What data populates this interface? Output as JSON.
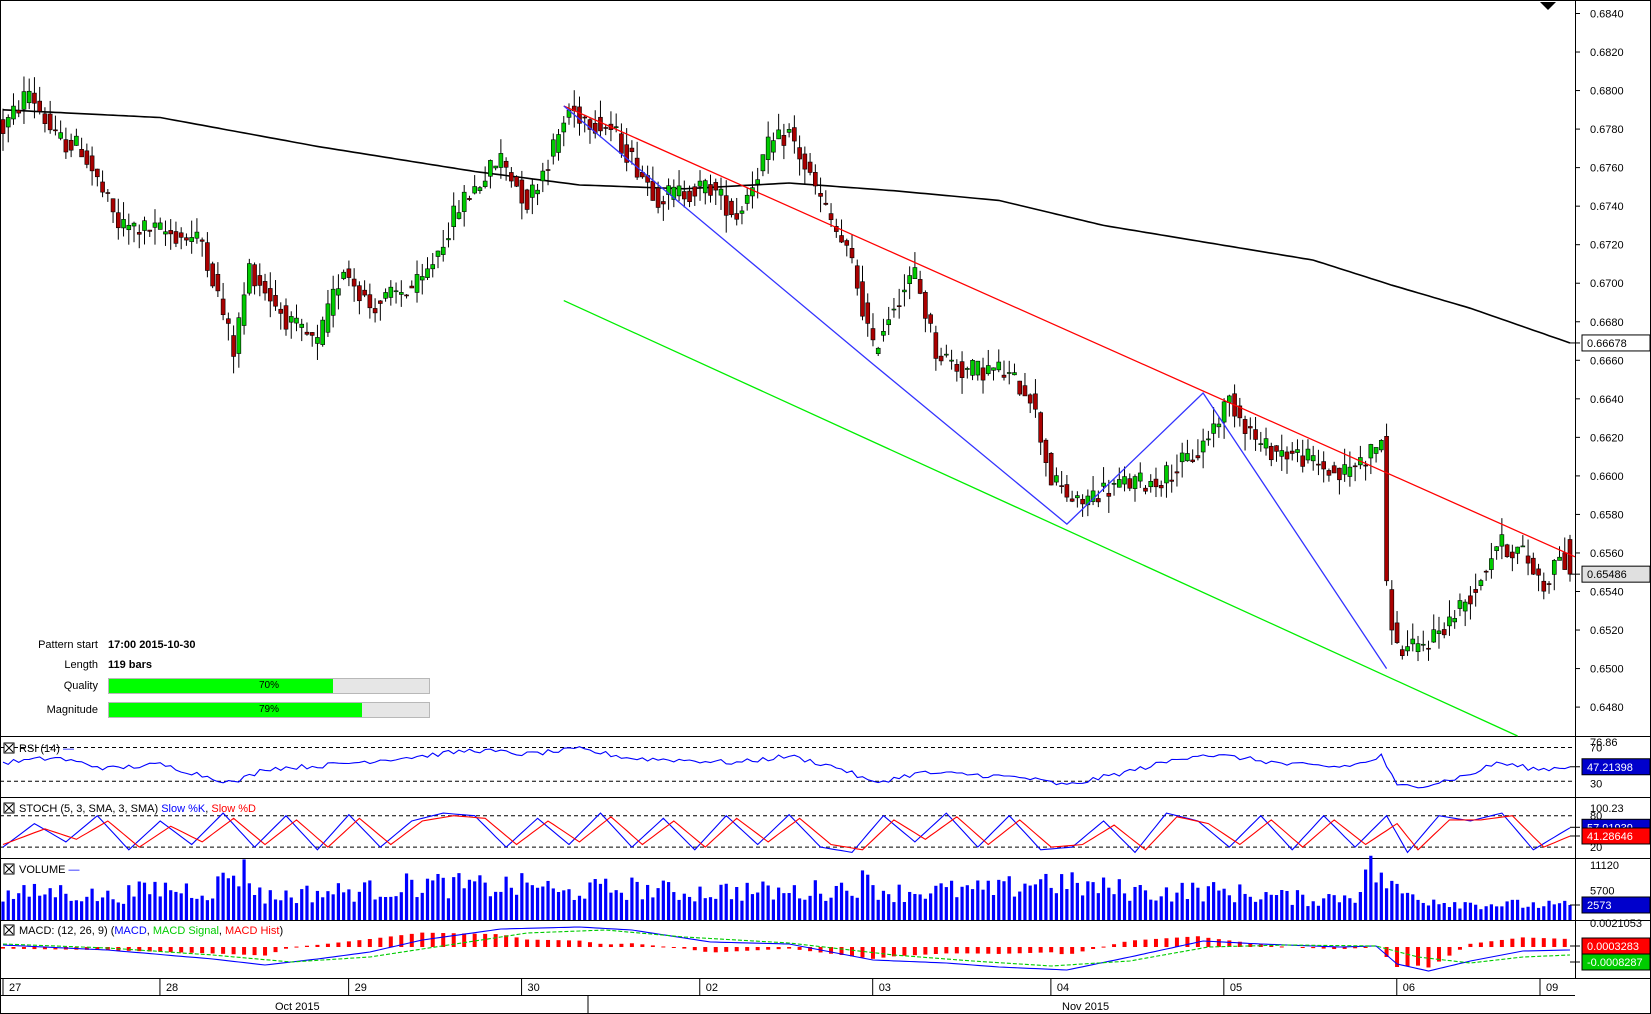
{
  "colors": {
    "up": "#00cc00",
    "down": "#aa0000",
    "ma": "#000000",
    "resistance": "#ff0000",
    "support": "#00ee00",
    "pattern": "#3333ff",
    "rsi": "#0000ff",
    "stoch_k": "#0000ff",
    "stoch_d": "#ff0000",
    "volume": "#0000ff",
    "macd_hist": "#ff0000",
    "macd_signal": "#00cc00"
  },
  "panel_icon": "box-x-icon",
  "corner_icon": "triangle-down-icon",
  "pattern_info": {
    "start_label": "Pattern start",
    "start_value": "17:00 2015-10-30",
    "length_label": "Length",
    "length_value": "119 bars",
    "quality_label": "Quality",
    "quality_value": "70%",
    "quality_fraction": 0.7,
    "magnitude_label": "Magnitude",
    "magnitude_value": "79%",
    "magnitude_fraction": 0.79
  },
  "chart_data": [
    {
      "type": "candlestick",
      "ylim": [
        0.6465,
        0.6847
      ],
      "yticks": [
        "0.6840",
        "0.6820",
        "0.6800",
        "0.6780",
        "0.6760",
        "0.6740",
        "0.6720",
        "0.6700",
        "0.6680",
        "0.6660",
        "0.6640",
        "0.6620",
        "0.6600",
        "0.6580",
        "0.6560",
        "0.6540",
        "0.6520",
        "0.6500",
        "0.6480"
      ],
      "x_day_labels": [
        "27",
        "28",
        "29",
        "30",
        "02",
        "03",
        "04",
        "05",
        "06",
        "09"
      ],
      "x_month_labels": [
        "Oct 2015",
        "Nov 2015"
      ],
      "last_price_label": "0.65486",
      "ma_label": "0.66678",
      "price_keypoints": [
        [
          0,
          0.678
        ],
        [
          5,
          0.68
        ],
        [
          10,
          0.6775
        ],
        [
          15,
          0.677
        ],
        [
          22,
          0.673
        ],
        [
          30,
          0.6727
        ],
        [
          38,
          0.6722
        ],
        [
          44,
          0.6665
        ],
        [
          47,
          0.6708
        ],
        [
          55,
          0.6678
        ],
        [
          60,
          0.6668
        ],
        [
          65,
          0.6709
        ],
        [
          70,
          0.6688
        ],
        [
          80,
          0.67
        ],
        [
          87,
          0.674
        ],
        [
          95,
          0.6765
        ],
        [
          100,
          0.6742
        ],
        [
          105,
          0.677
        ],
        [
          108,
          0.679
        ],
        [
          116,
          0.678
        ],
        [
          125,
          0.6745
        ],
        [
          135,
          0.675
        ],
        [
          140,
          0.6735
        ],
        [
          146,
          0.677
        ],
        [
          150,
          0.6778
        ],
        [
          156,
          0.6743
        ],
        [
          162,
          0.671
        ],
        [
          166,
          0.6665
        ],
        [
          170,
          0.669
        ],
        [
          174,
          0.6705
        ],
        [
          178,
          0.6665
        ],
        [
          183,
          0.6655
        ],
        [
          190,
          0.6655
        ],
        [
          196,
          0.6643
        ],
        [
          200,
          0.6598
        ],
        [
          205,
          0.6585
        ],
        [
          209,
          0.6592
        ],
        [
          214,
          0.6596
        ],
        [
          220,
          0.6597
        ],
        [
          228,
          0.6612
        ],
        [
          234,
          0.664
        ],
        [
          240,
          0.6615
        ],
        [
          248,
          0.661
        ],
        [
          255,
          0.66
        ],
        [
          261,
          0.6612
        ],
        [
          263,
          0.662
        ],
        [
          264,
          0.654
        ],
        [
          266,
          0.651
        ],
        [
          270,
          0.651
        ],
        [
          276,
          0.6525
        ],
        [
          281,
          0.6542
        ],
        [
          285,
          0.6565
        ],
        [
          290,
          0.656
        ],
        [
          294,
          0.6543
        ],
        [
          297,
          0.656
        ],
        [
          299,
          0.6549
        ]
      ],
      "ma_keypoints": [
        [
          0,
          0.679
        ],
        [
          30,
          0.6786
        ],
        [
          60,
          0.6771
        ],
        [
          90,
          0.6758
        ],
        [
          110,
          0.6751
        ],
        [
          130,
          0.6749
        ],
        [
          150,
          0.6752
        ],
        [
          170,
          0.6748
        ],
        [
          190,
          0.6743
        ],
        [
          210,
          0.673
        ],
        [
          230,
          0.6721
        ],
        [
          250,
          0.6712
        ],
        [
          265,
          0.6699
        ],
        [
          280,
          0.6687
        ],
        [
          299,
          0.6669
        ]
      ],
      "lines": [
        {
          "name": "resistance",
          "from": [
            107,
            0.6792
          ],
          "to": [
            299,
            0.6558
          ]
        },
        {
          "name": "support",
          "from": [
            107,
            0.6691
          ],
          "to": [
            289,
            0.6465
          ]
        },
        {
          "name": "pattern",
          "points": [
            [
              107,
              0.6792
            ],
            [
              166,
              0.6658
            ],
            [
              203,
              0.6575
            ],
            [
              229,
              0.6643
            ],
            [
              264,
              0.65
            ]
          ]
        }
      ]
    },
    {
      "type": "line",
      "name": "RSI",
      "title": "RSI (14)",
      "ylim": [
        15,
        80
      ],
      "levels_labels": [
        "70",
        "30"
      ],
      "top_label": "76.86",
      "value_label": "47.21398",
      "keypoints": [
        [
          0,
          52
        ],
        [
          10,
          58
        ],
        [
          20,
          45
        ],
        [
          30,
          50
        ],
        [
          40,
          34
        ],
        [
          44,
          28
        ],
        [
          50,
          45
        ],
        [
          60,
          48
        ],
        [
          70,
          54
        ],
        [
          80,
          60
        ],
        [
          90,
          67
        ],
        [
          100,
          62
        ],
        [
          110,
          68
        ],
        [
          120,
          57
        ],
        [
          130,
          55
        ],
        [
          140,
          52
        ],
        [
          150,
          60
        ],
        [
          160,
          45
        ],
        [
          166,
          28
        ],
        [
          175,
          40
        ],
        [
          185,
          38
        ],
        [
          195,
          34
        ],
        [
          203,
          25
        ],
        [
          215,
          42
        ],
        [
          228,
          62
        ],
        [
          236,
          58
        ],
        [
          245,
          50
        ],
        [
          255,
          47
        ],
        [
          260,
          52
        ],
        [
          263,
          60
        ],
        [
          266,
          24
        ],
        [
          272,
          26
        ],
        [
          280,
          38
        ],
        [
          285,
          52
        ],
        [
          293,
          44
        ],
        [
          299,
          47
        ]
      ]
    },
    {
      "type": "line",
      "name": "Stochastic",
      "title": "STOCH (5, 3, SMA, 3, SMA)",
      "series_names": [
        "Slow %K",
        "Slow %D"
      ],
      "ylim": [
        5,
        110
      ],
      "top_label": "100.23",
      "levels_labels": [
        "80",
        "20"
      ],
      "value_labels": [
        "57.91939",
        "41.28646"
      ],
      "k_keypoints": [
        [
          0,
          20
        ],
        [
          6,
          65
        ],
        [
          12,
          30
        ],
        [
          18,
          80
        ],
        [
          24,
          15
        ],
        [
          30,
          70
        ],
        [
          36,
          25
        ],
        [
          42,
          85
        ],
        [
          48,
          20
        ],
        [
          54,
          80
        ],
        [
          60,
          15
        ],
        [
          66,
          82
        ],
        [
          72,
          20
        ],
        [
          78,
          70
        ],
        [
          84,
          85
        ],
        [
          90,
          80
        ],
        [
          96,
          20
        ],
        [
          102,
          75
        ],
        [
          108,
          25
        ],
        [
          114,
          85
        ],
        [
          120,
          20
        ],
        [
          126,
          75
        ],
        [
          132,
          15
        ],
        [
          138,
          80
        ],
        [
          144,
          25
        ],
        [
          150,
          82
        ],
        [
          156,
          20
        ],
        [
          162,
          10
        ],
        [
          168,
          80
        ],
        [
          174,
          30
        ],
        [
          180,
          85
        ],
        [
          186,
          20
        ],
        [
          192,
          80
        ],
        [
          198,
          15
        ],
        [
          204,
          20
        ],
        [
          210,
          70
        ],
        [
          216,
          10
        ],
        [
          222,
          85
        ],
        [
          228,
          70
        ],
        [
          234,
          20
        ],
        [
          240,
          80
        ],
        [
          246,
          15
        ],
        [
          252,
          80
        ],
        [
          258,
          20
        ],
        [
          264,
          80
        ],
        [
          268,
          10
        ],
        [
          274,
          80
        ],
        [
          280,
          70
        ],
        [
          286,
          85
        ],
        [
          292,
          15
        ],
        [
          299,
          57
        ]
      ],
      "d_keypoints": [
        [
          0,
          25
        ],
        [
          8,
          55
        ],
        [
          14,
          35
        ],
        [
          20,
          70
        ],
        [
          26,
          20
        ],
        [
          32,
          60
        ],
        [
          38,
          30
        ],
        [
          44,
          75
        ],
        [
          50,
          25
        ],
        [
          56,
          72
        ],
        [
          62,
          20
        ],
        [
          68,
          75
        ],
        [
          74,
          25
        ],
        [
          80,
          70
        ],
        [
          86,
          80
        ],
        [
          92,
          75
        ],
        [
          98,
          25
        ],
        [
          104,
          70
        ],
        [
          110,
          30
        ],
        [
          116,
          78
        ],
        [
          122,
          25
        ],
        [
          128,
          70
        ],
        [
          134,
          20
        ],
        [
          140,
          75
        ],
        [
          146,
          30
        ],
        [
          152,
          75
        ],
        [
          158,
          25
        ],
        [
          164,
          15
        ],
        [
          170,
          72
        ],
        [
          176,
          35
        ],
        [
          182,
          78
        ],
        [
          188,
          25
        ],
        [
          194,
          72
        ],
        [
          200,
          20
        ],
        [
          206,
          25
        ],
        [
          212,
          62
        ],
        [
          218,
          15
        ],
        [
          224,
          78
        ],
        [
          230,
          65
        ],
        [
          236,
          25
        ],
        [
          242,
          72
        ],
        [
          248,
          20
        ],
        [
          254,
          72
        ],
        [
          260,
          25
        ],
        [
          266,
          65
        ],
        [
          270,
          15
        ],
        [
          276,
          72
        ],
        [
          282,
          72
        ],
        [
          288,
          80
        ],
        [
          294,
          20
        ],
        [
          299,
          41
        ]
      ]
    },
    {
      "type": "bar",
      "name": "Volume",
      "title": "VOLUME",
      "ylim": [
        0,
        12000
      ],
      "ticks": [
        "11120",
        "5700"
      ],
      "value_label": "2573",
      "keypoints": [
        [
          0,
          4800
        ],
        [
          10,
          5800
        ],
        [
          20,
          4500
        ],
        [
          30,
          6500
        ],
        [
          40,
          6000
        ],
        [
          44,
          10500
        ],
        [
          46,
          9800
        ],
        [
          50,
          4500
        ],
        [
          60,
          5500
        ],
        [
          70,
          6000
        ],
        [
          80,
          7500
        ],
        [
          90,
          6800
        ],
        [
          100,
          7000
        ],
        [
          102,
          7800
        ],
        [
          106,
          5000
        ],
        [
          110,
          6000
        ],
        [
          120,
          6500
        ],
        [
          130,
          5500
        ],
        [
          140,
          6000
        ],
        [
          150,
          5500
        ],
        [
          160,
          6500
        ],
        [
          164,
          7800
        ],
        [
          170,
          5500
        ],
        [
          180,
          6000
        ],
        [
          190,
          6000
        ],
        [
          198,
          8500
        ],
        [
          205,
          7000
        ],
        [
          210,
          6500
        ],
        [
          220,
          5500
        ],
        [
          228,
          6000
        ],
        [
          240,
          5000
        ],
        [
          250,
          4000
        ],
        [
          258,
          5000
        ],
        [
          260,
          10800
        ],
        [
          262,
          10000
        ],
        [
          266,
          5800
        ],
        [
          272,
          4000
        ],
        [
          280,
          3000
        ],
        [
          290,
          2800
        ],
        [
          299,
          2573
        ]
      ]
    },
    {
      "type": "line",
      "name": "MACD",
      "title": "MACD: (12, 26, 9)",
      "series_names": [
        "MACD",
        "MACD Signal",
        "MACD Hist"
      ],
      "ylim": [
        -0.0028,
        0.0024
      ],
      "top_label": "0.0021053",
      "value_labels": [
        "0.0003283",
        "-0.0008287"
      ],
      "macd_keypoints": [
        [
          0,
          0.0002
        ],
        [
          20,
          -0.0003
        ],
        [
          40,
          -0.0012
        ],
        [
          50,
          -0.0018
        ],
        [
          60,
          -0.0012
        ],
        [
          70,
          -0.0005
        ],
        [
          80,
          0.0007
        ],
        [
          95,
          0.0018
        ],
        [
          110,
          0.002
        ],
        [
          120,
          0.0017
        ],
        [
          135,
          0.0005
        ],
        [
          150,
          0.0003
        ],
        [
          166,
          -0.0013
        ],
        [
          180,
          -0.0016
        ],
        [
          190,
          -0.002
        ],
        [
          203,
          -0.0023
        ],
        [
          215,
          -0.001
        ],
        [
          229,
          0.0006
        ],
        [
          240,
          0.0003
        ],
        [
          255,
          0.0
        ],
        [
          262,
          0.0001
        ],
        [
          266,
          -0.0017
        ],
        [
          272,
          -0.0024
        ],
        [
          280,
          -0.0014
        ],
        [
          290,
          -0.0004
        ],
        [
          299,
          -0.0003
        ]
      ],
      "signal_keypoints": [
        [
          0,
          0.0003
        ],
        [
          20,
          -0.0001
        ],
        [
          40,
          -0.0008
        ],
        [
          55,
          -0.0015
        ],
        [
          70,
          -0.001
        ],
        [
          85,
          0.0002
        ],
        [
          100,
          0.0014
        ],
        [
          115,
          0.0017
        ],
        [
          130,
          0.001
        ],
        [
          150,
          0.0004
        ],
        [
          170,
          -0.0008
        ],
        [
          185,
          -0.0014
        ],
        [
          200,
          -0.0019
        ],
        [
          215,
          -0.0014
        ],
        [
          230,
          0.0
        ],
        [
          245,
          0.0002
        ],
        [
          262,
          0.0001
        ],
        [
          270,
          -0.001
        ],
        [
          280,
          -0.0016
        ],
        [
          290,
          -0.001
        ],
        [
          299,
          -0.0008
        ]
      ]
    }
  ]
}
